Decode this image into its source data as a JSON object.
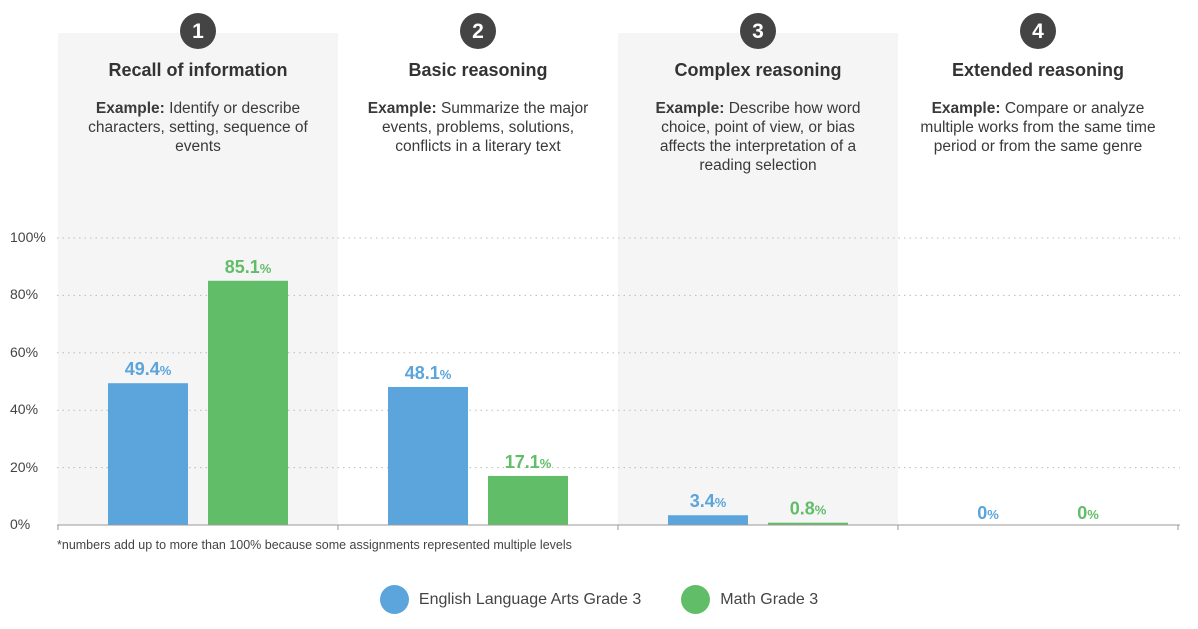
{
  "colors": {
    "ela": "#5ba4dc",
    "math": "#62bd69",
    "panel": "#f5f5f5",
    "badge": "#444444",
    "gridline": "#bbbbbb"
  },
  "levels": [
    {
      "number": "1",
      "title": "Recall of information",
      "example_label": "Example:",
      "example_text": "Identify or describe characters, setting, sequence of events",
      "shaded": true
    },
    {
      "number": "2",
      "title": "Basic reasoning",
      "example_label": "Example:",
      "example_text": "Summarize the major events, problems, solutions, conflicts in a literary text",
      "shaded": false
    },
    {
      "number": "3",
      "title": "Complex reasoning",
      "example_label": "Example:",
      "example_text": "Describe how word choice, point of view, or bias affects the interpretation of a reading selection",
      "shaded": true
    },
    {
      "number": "4",
      "title": "Extended reasoning",
      "example_label": "Example:",
      "example_text": "Compare or analyze multiple works from the same time period or from the same genre",
      "shaded": false
    }
  ],
  "footnote": "*numbers add up to more than 100% because some assignments represented multiple levels",
  "legend": [
    {
      "label": "English Language Arts Grade 3",
      "color": "#5ba4dc"
    },
    {
      "label": "Math Grade 3",
      "color": "#62bd69"
    }
  ],
  "chart_data": {
    "type": "bar",
    "categories": [
      "Recall of information",
      "Basic reasoning",
      "Complex reasoning",
      "Extended reasoning"
    ],
    "series": [
      {
        "name": "English Language Arts Grade 3",
        "values": [
          49.4,
          48.1,
          3.4,
          0
        ],
        "labels": [
          "49.4",
          "48.1",
          "3.4",
          "0"
        ]
      },
      {
        "name": "Math Grade 3",
        "values": [
          85.1,
          17.1,
          0.8,
          0
        ],
        "labels": [
          "85.1",
          "17.1",
          "0.8",
          "0"
        ]
      }
    ],
    "value_suffix": "%",
    "ylim": [
      0,
      100
    ],
    "yticks": [
      "0%",
      "20%",
      "40%",
      "60%",
      "80%",
      "100%"
    ],
    "ytick_values": [
      0,
      20,
      40,
      60,
      80,
      100
    ],
    "grid": true,
    "legend_position": "bottom"
  }
}
